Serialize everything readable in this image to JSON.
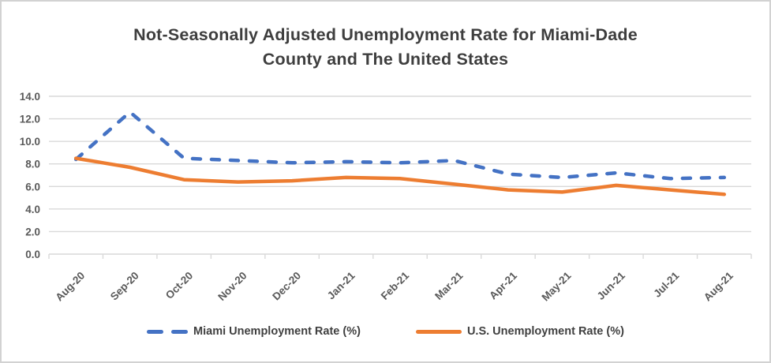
{
  "window": {
    "title_line1": "Not-Seasonally Adjusted Unemployment Rate for Miami-Dade",
    "title_line2": "County and The United States"
  },
  "chart_data": {
    "type": "line",
    "title": "Not-Seasonally Adjusted Unemployment Rate for Miami-Dade County and The United States",
    "categories": [
      "Aug-20",
      "Sep-20",
      "Oct-20",
      "Nov-20",
      "Dec-20",
      "Jan-21",
      "Feb-21",
      "Mar-21",
      "Apr-21",
      "May-21",
      "Jun-21",
      "Jul-21",
      "Aug-21"
    ],
    "series": [
      {
        "name": "Miami Unemployment Rate (%)",
        "values": [
          8.4,
          12.6,
          8.5,
          8.3,
          8.1,
          8.2,
          8.1,
          8.3,
          7.1,
          6.8,
          7.2,
          6.7,
          6.8
        ],
        "color": "#4472C4",
        "line_style": "dashed"
      },
      {
        "name": "U.S. Unemployment Rate (%)",
        "values": [
          8.5,
          7.7,
          6.6,
          6.4,
          6.5,
          6.8,
          6.7,
          6.2,
          5.7,
          5.5,
          6.1,
          5.7,
          5.3
        ],
        "color": "#ED7D31",
        "line_style": "solid"
      }
    ],
    "xlabel": "",
    "ylabel": "",
    "ylim": [
      0,
      14
    ],
    "ytick_step": 2,
    "ytick_labels": [
      "0.0",
      "2.0",
      "4.0",
      "6.0",
      "8.0",
      "10.0",
      "12.0",
      "14.0"
    ],
    "grid": true,
    "legend_position": "bottom"
  },
  "colors": {
    "gridline": "#D9D9D9",
    "axis_text": "#595959",
    "title_text": "#3E3E3E",
    "frame_border": "#D2D2D2",
    "background": "#FFFFFF"
  }
}
